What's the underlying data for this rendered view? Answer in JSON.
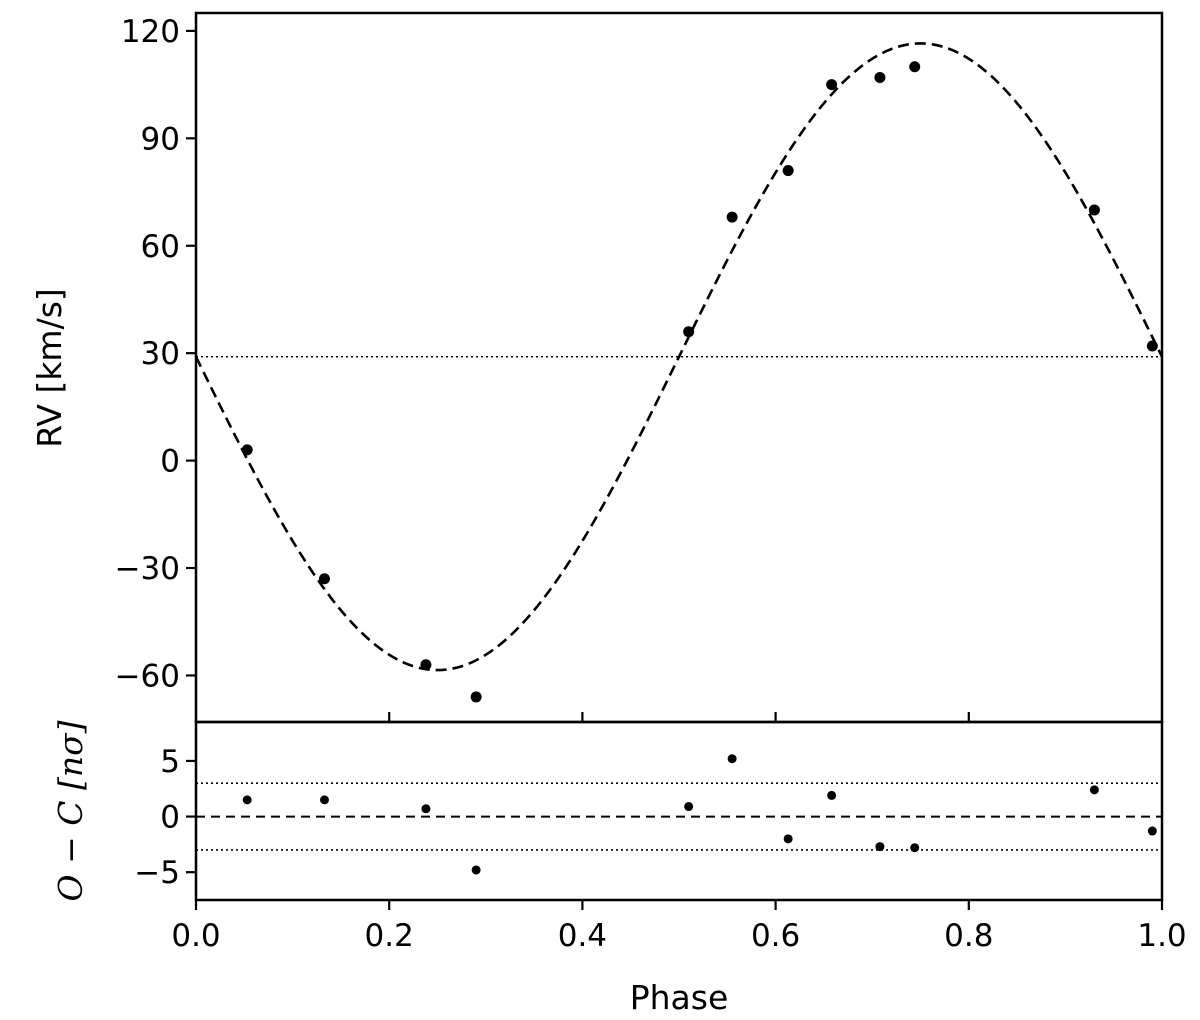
{
  "chart_data": [
    {
      "type": "scatter",
      "title": "",
      "xlabel": "",
      "ylabel": "RV [km/s]",
      "xlim": [
        0.0,
        1.0
      ],
      "ylim": [
        -73,
        125
      ],
      "xticks": [
        0.0,
        0.2,
        0.4,
        0.6,
        0.8,
        1.0
      ],
      "yticks": [
        -60,
        -30,
        0,
        30,
        60,
        90,
        120
      ],
      "ytick_labels": [
        "−60",
        "−30",
        "0",
        "30",
        "60",
        "90",
        "120"
      ],
      "grid": false,
      "legend": "none",
      "series": [
        {
          "kind": "points",
          "color": "#000000",
          "x": [
            0.053,
            0.133,
            0.238,
            0.29,
            0.51,
            0.555,
            0.613,
            0.658,
            0.708,
            0.744,
            0.93,
            0.99
          ],
          "y": [
            3,
            -33,
            -57,
            -66,
            36,
            68,
            81,
            105,
            107,
            110,
            70,
            32
          ]
        },
        {
          "kind": "model-curve",
          "style": "dashed",
          "color": "#000000",
          "model": {
            "gamma": 29,
            "semi_amplitude": 87.5,
            "phase_of_max": 0.75
          }
        },
        {
          "kind": "reference-line",
          "style": "dotted",
          "color": "#000000",
          "y": 29
        }
      ]
    },
    {
      "type": "scatter",
      "title": "",
      "xlabel": "Phase",
      "ylabel": "O − C [nσ]",
      "ylabel_parts": {
        "o": "O",
        "minus": " − ",
        "c": "C",
        "unit": " [nσ]"
      },
      "xlim": [
        0.0,
        1.0
      ],
      "ylim": [
        -7.5,
        8.5
      ],
      "xticks": [
        0.0,
        0.2,
        0.4,
        0.6,
        0.8,
        1.0
      ],
      "xtick_labels": [
        "0.0",
        "0.2",
        "0.4",
        "0.6",
        "0.8",
        "1.0"
      ],
      "yticks": [
        -5,
        0,
        5
      ],
      "ytick_labels": [
        "−5",
        "0",
        "5"
      ],
      "grid": false,
      "legend": "none",
      "series": [
        {
          "kind": "points",
          "color": "#000000",
          "x": [
            0.053,
            0.133,
            0.238,
            0.29,
            0.51,
            0.555,
            0.613,
            0.658,
            0.708,
            0.744,
            0.93,
            0.99
          ],
          "y": [
            1.5,
            1.5,
            0.7,
            -4.8,
            0.9,
            5.2,
            -2.0,
            1.9,
            -2.7,
            -2.8,
            2.4,
            -1.3
          ]
        },
        {
          "kind": "reference-line",
          "style": "dashed",
          "color": "#000000",
          "y": 0
        },
        {
          "kind": "reference-line",
          "style": "dotted",
          "color": "#000000",
          "y": 3
        },
        {
          "kind": "reference-line",
          "style": "dotted",
          "color": "#000000",
          "y": -3
        }
      ]
    }
  ]
}
